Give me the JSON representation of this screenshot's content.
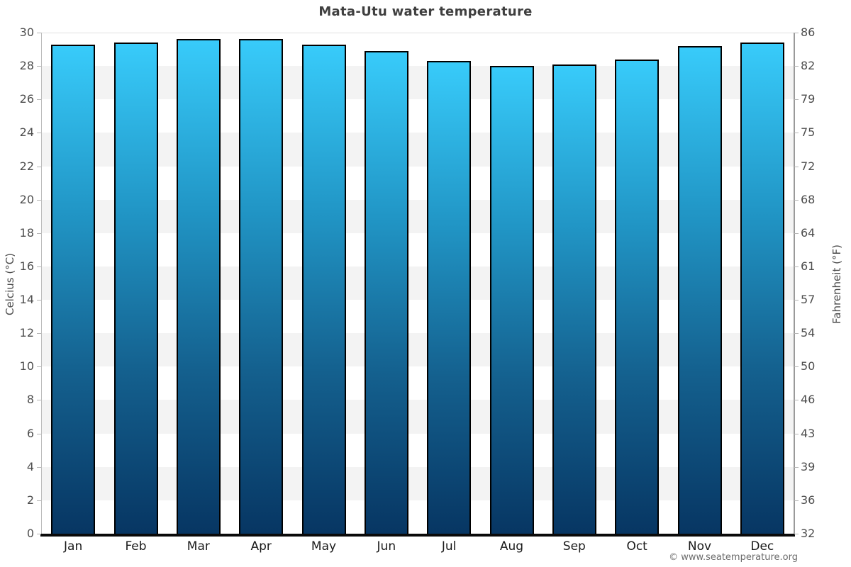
{
  "watermark": "© www.seatemperature.org",
  "colors": {
    "bar_top": "#38cbfa",
    "bar_upper_mid": "#2196c6",
    "bar_lower_mid": "#14608e",
    "bar_bottom": "#073663",
    "bar_border": "#000000",
    "band_gray": "#f3f3f3",
    "band_white": "#ffffff",
    "x_axis_line": "#0a0a0a",
    "side_axis_line": "#9a9a9a",
    "tick_label": "#4d4d4d",
    "month_label": "#1a1a1a",
    "title": "#3f3f3f",
    "watermark": "#6b6b6b"
  },
  "chart_data": {
    "type": "bar",
    "title": "Mata-Utu water temperature",
    "categories": [
      "Jan",
      "Feb",
      "Mar",
      "Apr",
      "May",
      "Jun",
      "Jul",
      "Aug",
      "Sep",
      "Oct",
      "Nov",
      "Dec"
    ],
    "values": [
      29.3,
      29.4,
      29.6,
      29.6,
      29.3,
      28.9,
      28.3,
      28.0,
      28.1,
      28.4,
      29.2,
      29.4
    ],
    "value_unit": "°C",
    "xlabel": "",
    "ylabel_left": "Celcius (°C)",
    "ylabel_right": "Fahrenheit (°F)",
    "ylim": [
      0,
      30
    ],
    "ytick_step_celsius": 2,
    "yticks_celsius": [
      0,
      2,
      4,
      6,
      8,
      10,
      12,
      14,
      16,
      18,
      20,
      22,
      24,
      26,
      28,
      30
    ],
    "yticks_fahrenheit": [
      "32",
      "36",
      "39",
      "43",
      "46",
      "50",
      "54",
      "57",
      "61",
      "64",
      "68",
      "72",
      "75",
      "79",
      "82",
      "86"
    ],
    "grid": "alternating horizontal bands every 2°C, gray on odd bands",
    "legend": "none"
  }
}
